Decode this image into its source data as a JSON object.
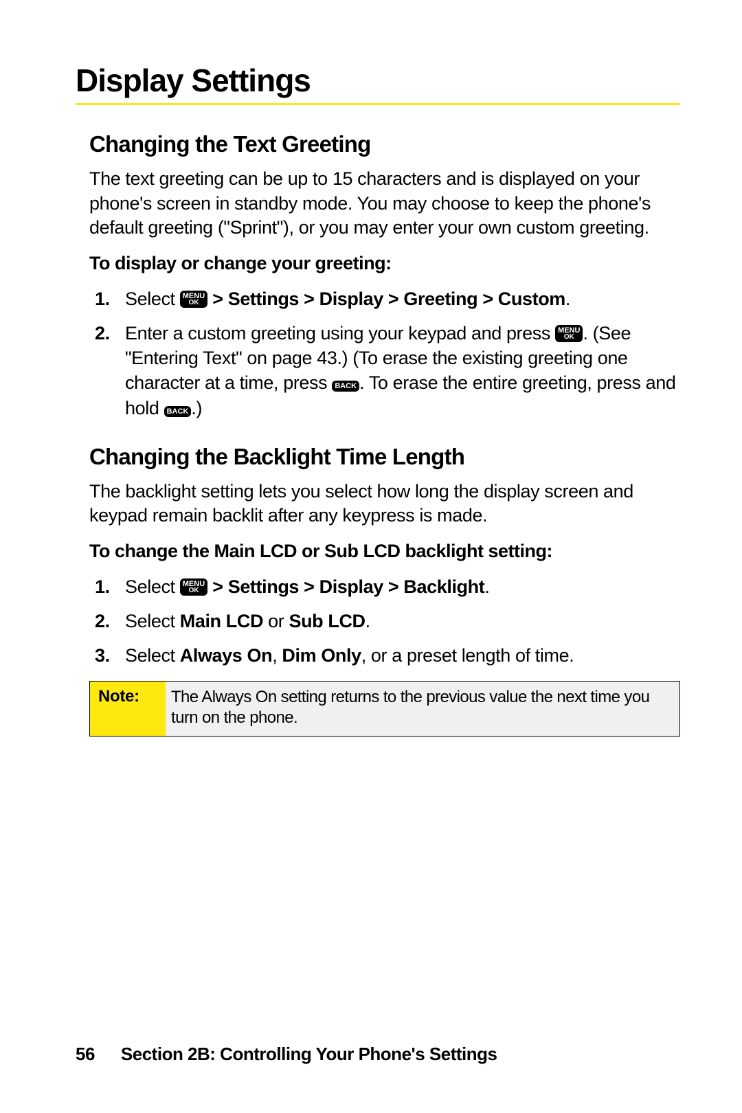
{
  "colors": {
    "accent": "#fde910",
    "note_bg": "#f0f0f0",
    "text": "#000000",
    "bg": "#ffffff"
  },
  "title": "Display Settings",
  "section1": {
    "heading": "Changing the Text Greeting",
    "body": "The text greeting can be up to 15 characters and is displayed on your phone's screen in standby mode. You may choose to keep the phone's default greeting (\"Sprint\"), or you may enter your own custom greeting.",
    "lead": "To display or change your greeting:",
    "step1_a": "Select ",
    "step1_b": " > Settings > Display > Greeting > Custom",
    "step1_c": ".",
    "step2_a": "Enter a custom greeting using your keypad and press ",
    "step2_b": ". (See \"Entering Text\" on page 43.) (To erase the existing greeting one character at a time, press ",
    "step2_c": ". To erase the entire greeting, press and hold ",
    "step2_d": ".)"
  },
  "section2": {
    "heading": "Changing the Backlight Time Length",
    "body": "The backlight setting lets you select how long the display screen and keypad remain backlit after any keypress is made.",
    "lead": "To change the Main LCD or Sub LCD backlight setting:",
    "step1_a": "Select ",
    "step1_b": " > Settings > Display > Backlight",
    "step1_c": ".",
    "step2_a": "Select ",
    "step2_b": "Main LCD",
    "step2_c": " or ",
    "step2_d": "Sub LCD",
    "step2_e": ".",
    "step3_a": "Select ",
    "step3_b": "Always On",
    "step3_c": ", ",
    "step3_d": "Dim Only",
    "step3_e": ", or a preset length of time."
  },
  "note": {
    "label": "Note:",
    "text": "The Always On setting returns to the previous value the next time you turn on the phone."
  },
  "keys": {
    "menu_l1": "MENU",
    "menu_l2": "OK",
    "back": "BACK"
  },
  "footer": {
    "page": "56",
    "section": "Section 2B: Controlling Your Phone's Settings"
  }
}
